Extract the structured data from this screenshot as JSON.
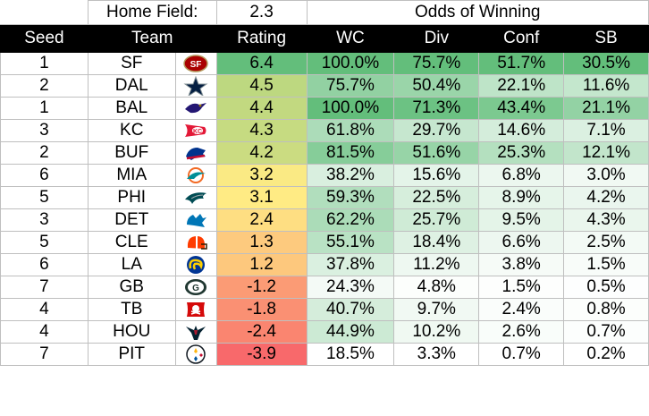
{
  "header": {
    "home_field_label": "Home Field:",
    "home_field_value": "2.3",
    "odds_label": "Odds of Winning"
  },
  "columns": [
    "Seed",
    "Team",
    "Rating",
    "WC",
    "Div",
    "Conf",
    "SB"
  ],
  "rows": [
    {
      "seed": "1",
      "team": "SF",
      "logo": "sf-49ers-logo-icon",
      "rating": "6.4",
      "wc": "100.0%",
      "div": "75.7%",
      "conf": "51.7%",
      "sb": "30.5%"
    },
    {
      "seed": "2",
      "team": "DAL",
      "logo": "cowboys-star-logo-icon",
      "rating": "4.5",
      "wc": "75.7%",
      "div": "50.4%",
      "conf": "22.1%",
      "sb": "11.6%"
    },
    {
      "seed": "1",
      "team": "BAL",
      "logo": "ravens-logo-icon",
      "rating": "4.4",
      "wc": "100.0%",
      "div": "71.3%",
      "conf": "43.4%",
      "sb": "21.1%"
    },
    {
      "seed": "3",
      "team": "KC",
      "logo": "chiefs-arrowhead-logo-icon",
      "rating": "4.3",
      "wc": "61.8%",
      "div": "29.7%",
      "conf": "14.6%",
      "sb": "7.1%"
    },
    {
      "seed": "2",
      "team": "BUF",
      "logo": "bills-buffalo-logo-icon",
      "rating": "4.2",
      "wc": "81.5%",
      "div": "51.6%",
      "conf": "25.3%",
      "sb": "12.1%"
    },
    {
      "seed": "6",
      "team": "MIA",
      "logo": "dolphins-logo-icon",
      "rating": "3.2",
      "wc": "38.2%",
      "div": "15.6%",
      "conf": "6.8%",
      "sb": "3.0%"
    },
    {
      "seed": "5",
      "team": "PHI",
      "logo": "eagles-logo-icon",
      "rating": "3.1",
      "wc": "59.3%",
      "div": "22.5%",
      "conf": "8.9%",
      "sb": "4.2%"
    },
    {
      "seed": "3",
      "team": "DET",
      "logo": "lions-logo-icon",
      "rating": "2.4",
      "wc": "62.2%",
      "div": "25.7%",
      "conf": "9.5%",
      "sb": "4.3%"
    },
    {
      "seed": "5",
      "team": "CLE",
      "logo": "browns-helmet-logo-icon",
      "rating": "1.3",
      "wc": "55.1%",
      "div": "18.4%",
      "conf": "6.6%",
      "sb": "2.5%"
    },
    {
      "seed": "6",
      "team": "LA",
      "logo": "rams-horn-logo-icon",
      "rating": "1.2",
      "wc": "37.8%",
      "div": "11.2%",
      "conf": "3.8%",
      "sb": "1.5%"
    },
    {
      "seed": "7",
      "team": "GB",
      "logo": "packers-g-logo-icon",
      "rating": "-1.2",
      "wc": "24.3%",
      "div": "4.8%",
      "conf": "1.5%",
      "sb": "0.5%"
    },
    {
      "seed": "4",
      "team": "TB",
      "logo": "buccaneers-flag-logo-icon",
      "rating": "-1.8",
      "wc": "40.7%",
      "div": "9.7%",
      "conf": "2.4%",
      "sb": "0.8%"
    },
    {
      "seed": "4",
      "team": "HOU",
      "logo": "texans-bull-logo-icon",
      "rating": "-2.4",
      "wc": "44.9%",
      "div": "10.2%",
      "conf": "2.6%",
      "sb": "0.7%"
    },
    {
      "seed": "7",
      "team": "PIT",
      "logo": "steelers-logo-icon",
      "rating": "-3.9",
      "wc": "18.5%",
      "div": "3.3%",
      "conf": "0.7%",
      "sb": "0.2%"
    }
  ],
  "colors": {
    "header_bg": "#000000",
    "header_fg": "#ffffff",
    "rating_high": "#63be7b",
    "rating_mid": "#ffeb84",
    "rating_low": "#f8696b",
    "pct_high": "#63be7b",
    "pct_low": "#ffffff"
  }
}
